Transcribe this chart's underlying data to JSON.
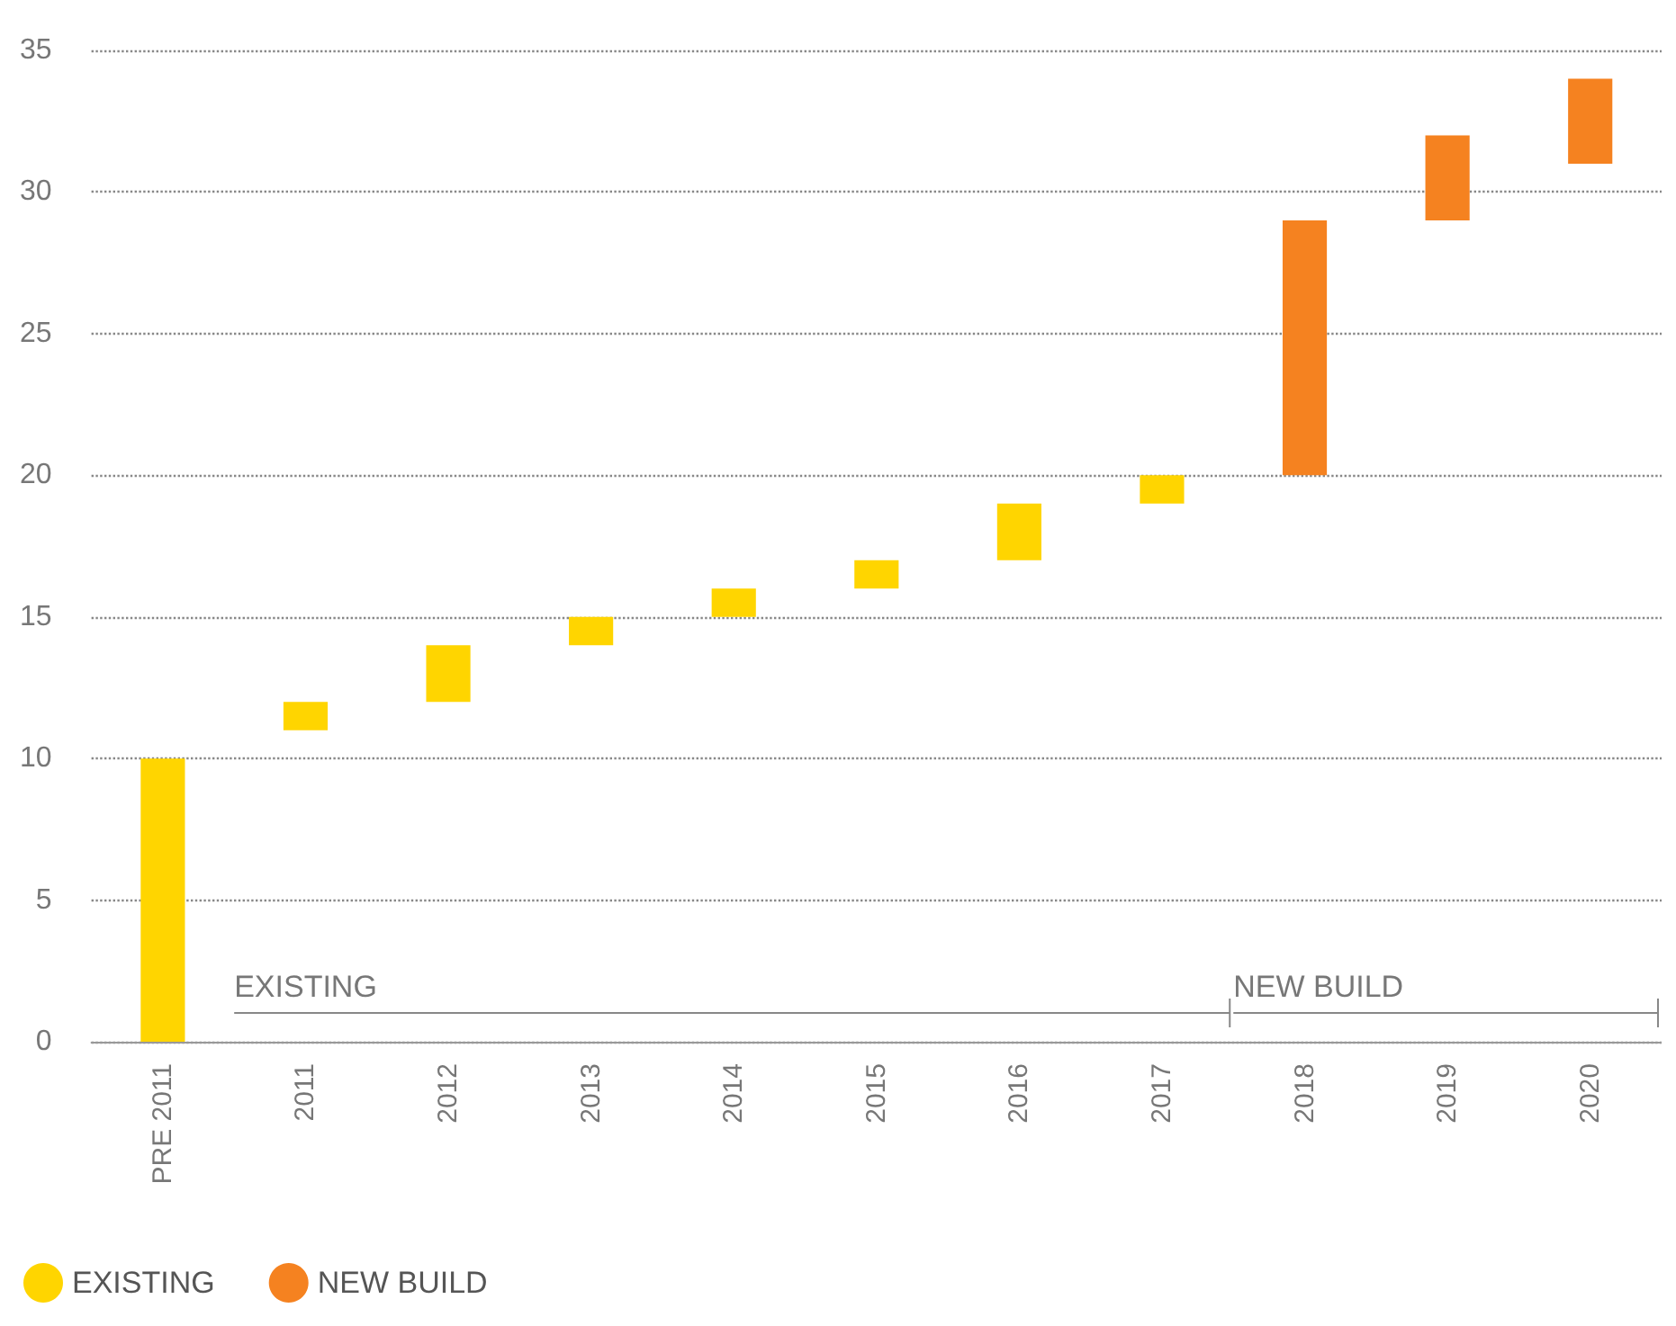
{
  "chart_data": {
    "type": "bar",
    "categories": [
      "PRE 2011",
      "2011",
      "2012",
      "2013",
      "2014",
      "2015",
      "2016",
      "2017",
      "2018",
      "2019",
      "2020"
    ],
    "series": [
      {
        "name": "EXISTING",
        "color": "#ffd500",
        "values": [
          10,
          1,
          2,
          1,
          1,
          1,
          2,
          1,
          null,
          null,
          null
        ],
        "base": [
          0,
          11,
          12,
          14,
          15,
          16,
          17,
          19,
          null,
          null,
          null
        ]
      },
      {
        "name": "NEW BUILD",
        "color": "#f58220",
        "values": [
          null,
          null,
          null,
          null,
          null,
          null,
          null,
          null,
          9,
          3,
          3
        ],
        "base": [
          null,
          null,
          null,
          null,
          null,
          null,
          null,
          null,
          20,
          29,
          31
        ]
      }
    ],
    "ylim": [
      0,
      35
    ],
    "yticks": [
      0,
      5,
      10,
      15,
      20,
      25,
      30,
      35
    ],
    "grid": "y",
    "legend": "bottom left",
    "annotations": [
      "EXISTING",
      "NEW BUILD"
    ]
  }
}
